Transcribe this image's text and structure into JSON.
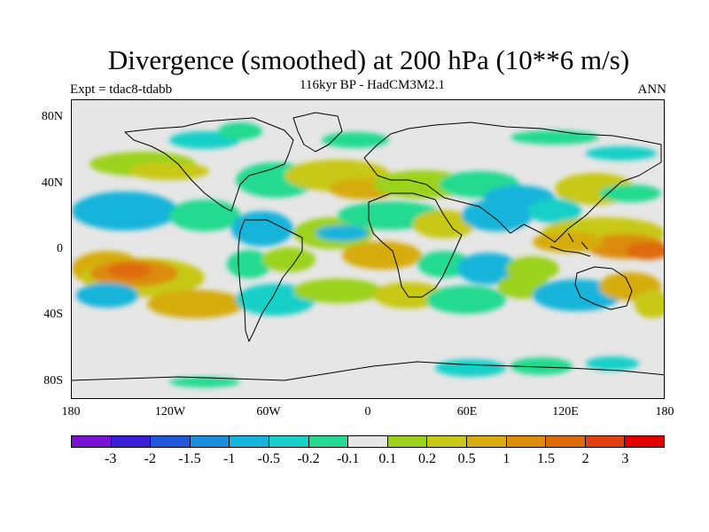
{
  "figure": {
    "title": "Divergence (smoothed) at 200 hPa (10**6 m/s)",
    "experiment": "Expt = tdac8-tdabb",
    "subtitle": "116kyr BP - HadCM3M2.1",
    "period": "ANN"
  },
  "axes": {
    "y_ticks": [
      "80N",
      "40N",
      "0",
      "40S",
      "80S"
    ],
    "x_ticks": [
      "180",
      "120W",
      "60W",
      "0",
      "60E",
      "120E",
      "180"
    ]
  },
  "colorbar": {
    "colors": [
      "#7a12d4",
      "#3a1fd6",
      "#1f58d8",
      "#1a8fdc",
      "#15b4da",
      "#18d0c8",
      "#24da90",
      "#e6e6e6",
      "#9cd21e",
      "#c8c818",
      "#d6ac0e",
      "#dc8c0a",
      "#de6a0c",
      "#e04010",
      "#e00000"
    ],
    "labels": [
      "-3",
      "-2",
      "-1.5",
      "-1",
      "-0.5",
      "-0.2",
      "-0.1",
      "0.1",
      "0.2",
      "0.5",
      "1",
      "1.5",
      "2",
      "3"
    ]
  },
  "map": {
    "projection": "cylindrical equidistant",
    "longitude_range": [
      -180,
      180
    ],
    "latitude_range": [
      -90,
      90
    ],
    "fill_colors": {
      "background": "#e6e6e6",
      "green": "#24da90",
      "cyan": "#18d0c8",
      "blue": "#15b4da",
      "yellowgreen": "#9cd21e",
      "olive": "#c8c818",
      "orange": "#d6ac0e",
      "darkorange": "#dc8c0a",
      "red": "#de6a0c"
    }
  }
}
